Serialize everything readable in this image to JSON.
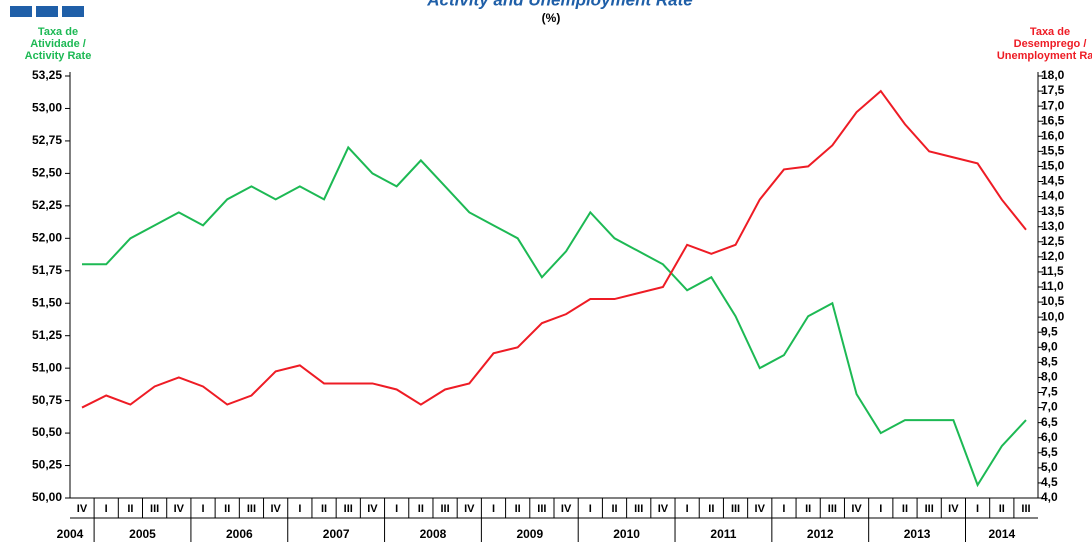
{
  "chart_data": {
    "type": "line",
    "title": "Activity and Unemployment Rate",
    "subtitle": "(%)",
    "y_label": [
      "Taxa de",
      "Atividade /",
      "Activity Rate"
    ],
    "y2_label": [
      "Taxa de",
      "Desemprego /",
      "Unemployment Rate"
    ],
    "categories": [
      "IV",
      "I",
      "II",
      "III",
      "IV",
      "I",
      "II",
      "III",
      "IV",
      "I",
      "II",
      "III",
      "IV",
      "I",
      "II",
      "III",
      "IV",
      "I",
      "II",
      "III",
      "IV",
      "I",
      "II",
      "III",
      "IV",
      "I",
      "II",
      "III",
      "IV",
      "I",
      "II",
      "III",
      "IV",
      "I",
      "II",
      "III",
      "IV",
      "I",
      "II",
      "III"
    ],
    "years": [
      "2004",
      "2005",
      "2006",
      "2007",
      "2008",
      "2009",
      "2010",
      "2011",
      "2012",
      "2013",
      "2014"
    ],
    "series": [
      {
        "color": "#1db954",
        "axis": "y",
        "values": [
          51.8,
          51.8,
          52.0,
          52.1,
          52.2,
          52.1,
          52.3,
          52.4,
          52.3,
          52.4,
          52.3,
          52.7,
          52.5,
          52.4,
          52.6,
          52.4,
          52.2,
          52.1,
          52.0,
          51.7,
          51.9,
          52.2,
          52.0,
          51.9,
          51.8,
          51.6,
          51.7,
          51.4,
          51.0,
          51.1,
          51.4,
          51.5,
          50.8,
          50.5,
          50.6,
          50.6,
          50.6,
          50.1,
          50.4,
          50.6
        ]
      },
      {
        "color": "#ee1c25",
        "axis": "y2",
        "values": [
          7.0,
          7.4,
          7.1,
          7.7,
          8.0,
          7.7,
          7.1,
          7.4,
          8.2,
          8.4,
          7.8,
          7.8,
          7.8,
          7.6,
          7.1,
          7.6,
          7.8,
          8.8,
          9.0,
          9.8,
          10.1,
          10.6,
          10.6,
          10.8,
          11.0,
          12.4,
          12.1,
          12.4,
          13.9,
          14.9,
          15.0,
          15.7,
          16.8,
          17.5,
          16.4,
          15.5,
          15.3,
          15.1,
          13.9,
          12.9
        ]
      }
    ],
    "ylim": [
      50.0,
      53.25
    ],
    "yticks": [
      {
        "value": 50.0,
        "label": "50,00"
      },
      {
        "value": 50.25,
        "label": "50,25"
      },
      {
        "value": 50.5,
        "label": "50,50"
      },
      {
        "value": 50.75,
        "label": "50,75"
      },
      {
        "value": 51.0,
        "label": "51,00"
      },
      {
        "value": 51.25,
        "label": "51,25"
      },
      {
        "value": 51.5,
        "label": "51,50"
      },
      {
        "value": 51.75,
        "label": "51,75"
      },
      {
        "value": 52.0,
        "label": "52,00"
      },
      {
        "value": 52.25,
        "label": "52,25"
      },
      {
        "value": 52.5,
        "label": "52,50"
      },
      {
        "value": 52.75,
        "label": "52,75"
      },
      {
        "value": 53.0,
        "label": "53,00"
      },
      {
        "value": 53.25,
        "label": "53,25"
      }
    ],
    "y2lim": [
      4.0,
      18.0
    ],
    "y2ticks": [
      {
        "value": 4.0,
        "label": "4,0"
      },
      {
        "value": 4.5,
        "label": "4,5"
      },
      {
        "value": 5.0,
        "label": "5,0"
      },
      {
        "value": 5.5,
        "label": "5,5"
      },
      {
        "value": 6.0,
        "label": "6,0"
      },
      {
        "value": 6.5,
        "label": "6,5"
      },
      {
        "value": 7.0,
        "label": "7,0"
      },
      {
        "value": 7.5,
        "label": "7,5"
      },
      {
        "value": 8.0,
        "label": "8,0"
      },
      {
        "value": 8.5,
        "label": "8,5"
      },
      {
        "value": 9.0,
        "label": "9,0"
      },
      {
        "value": 9.5,
        "label": "9,5"
      },
      {
        "value": 10.0,
        "label": "10,0"
      },
      {
        "value": 10.5,
        "label": "10,5"
      },
      {
        "value": 11.0,
        "label": "11,0"
      },
      {
        "value": 11.5,
        "label": "11,5"
      },
      {
        "value": 12.0,
        "label": "12,0"
      },
      {
        "value": 12.5,
        "label": "12,5"
      },
      {
        "value": 13.0,
        "label": "13,0"
      },
      {
        "value": 13.5,
        "label": "13,5"
      },
      {
        "value": 14.0,
        "label": "14,0"
      },
      {
        "value": 14.5,
        "label": "14,5"
      },
      {
        "value": 15.0,
        "label": "15,0"
      },
      {
        "value": 15.5,
        "label": "15,5"
      },
      {
        "value": 16.0,
        "label": "16,0"
      },
      {
        "value": 16.5,
        "label": "16,5"
      },
      {
        "value": 17.0,
        "label": "17,0"
      },
      {
        "value": 17.5,
        "label": "17,5"
      },
      {
        "value": 18.0,
        "label": "18,0"
      }
    ],
    "grid": false
  }
}
